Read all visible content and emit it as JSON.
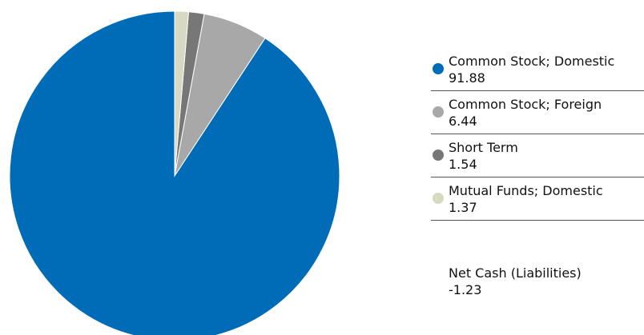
{
  "chart_data": {
    "type": "pie",
    "title": "",
    "start_angle_deg": 0,
    "direction": "counterclockwise",
    "slices": [
      {
        "label": "Common Stock; Domestic",
        "value": 91.88,
        "value_text": "91.88",
        "color": "#006cb7"
      },
      {
        "label": "Common Stock; Foreign",
        "value": 6.44,
        "value_text": "6.44",
        "color": "#a8a8a8"
      },
      {
        "label": "Short Term",
        "value": 1.54,
        "value_text": "1.54",
        "color": "#777777"
      },
      {
        "label": "Mutual Funds; Domestic",
        "value": 1.37,
        "value_text": "1.37",
        "color": "#d8d9c2"
      }
    ],
    "legend_position": "right",
    "net_cash": {
      "label": "Net Cash (Liabilities)",
      "value": -1.23,
      "value_text": "-1.23"
    }
  }
}
